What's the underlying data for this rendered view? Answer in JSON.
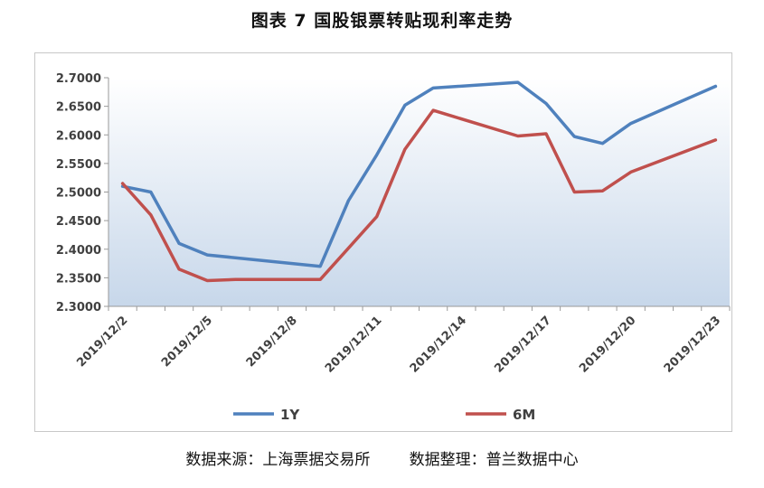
{
  "header": {
    "title": "图表 7  国股银票转贴现利率走势"
  },
  "footer": {
    "source": "数据来源：上海票据交易所        数据整理：普兰数据中心"
  },
  "chart_data": {
    "type": "line",
    "title": "图表 7  国股银票转贴现利率走势",
    "xlabel": "",
    "ylabel": "",
    "ylim": [
      2.3,
      2.7
    ],
    "y_tick_step": 0.05,
    "y_tick_labels": [
      "2.3000",
      "2.3500",
      "2.4000",
      "2.4500",
      "2.5000",
      "2.5500",
      "2.6000",
      "2.6500",
      "2.7000"
    ],
    "x": [
      0,
      1,
      2,
      3,
      4,
      5,
      6,
      7,
      8,
      9,
      10,
      11,
      12,
      13,
      14,
      15,
      16,
      17,
      18,
      19,
      20,
      21
    ],
    "x_tick_labels": [
      "2019/12/2",
      "2019/12/5",
      "2019/12/8",
      "2019/12/11",
      "2019/12/14",
      "2019/12/17",
      "2019/12/20",
      "2019/12/23"
    ],
    "x_tick_positions": [
      0,
      3,
      6,
      9,
      12,
      15,
      18,
      21
    ],
    "legend_position": "bottom",
    "grid": false,
    "series": [
      {
        "name": "1Y",
        "color": "#4f81bd",
        "points": [
          [
            0,
            2.51
          ],
          [
            1,
            2.5
          ],
          [
            2,
            2.41
          ],
          [
            3,
            2.39
          ],
          [
            7,
            2.37
          ],
          [
            8,
            2.485
          ],
          [
            9,
            2.565
          ],
          [
            10,
            2.652
          ],
          [
            11,
            2.682
          ],
          [
            14,
            2.692
          ],
          [
            15,
            2.655
          ],
          [
            16,
            2.597
          ],
          [
            17,
            2.585
          ],
          [
            18,
            2.62
          ],
          [
            21,
            2.685
          ]
        ]
      },
      {
        "name": "6M",
        "color": "#c0504d",
        "points": [
          [
            0,
            2.515
          ],
          [
            1,
            2.46
          ],
          [
            2,
            2.365
          ],
          [
            3,
            2.345
          ],
          [
            4,
            2.347
          ],
          [
            7,
            2.347
          ],
          [
            9,
            2.457
          ],
          [
            10,
            2.575
          ],
          [
            11,
            2.643
          ],
          [
            14,
            2.598
          ],
          [
            15,
            2.602
          ],
          [
            16,
            2.5
          ],
          [
            17,
            2.502
          ],
          [
            18,
            2.535
          ],
          [
            21,
            2.591
          ]
        ]
      }
    ]
  }
}
